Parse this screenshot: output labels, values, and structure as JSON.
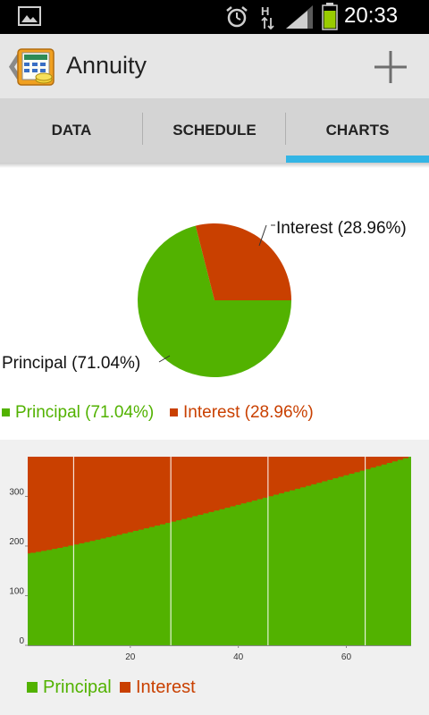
{
  "status_bar": {
    "time": "20:33",
    "network_label": "H"
  },
  "action_bar": {
    "title": "Annuity"
  },
  "tabs": [
    {
      "label": "DATA",
      "selected": false
    },
    {
      "label": "SCHEDULE",
      "selected": false
    },
    {
      "label": "CHARTS",
      "selected": true
    }
  ],
  "colors": {
    "principal": "#52b200",
    "interest": "#c94000",
    "accent": "#33b5e5"
  },
  "chart_data": [
    {
      "type": "pie",
      "slices": [
        {
          "name": "Principal",
          "value": 71.04,
          "label": "Principal (71.04%)",
          "color": "#52b200"
        },
        {
          "name": "Interest",
          "value": 28.96,
          "label": "Interest (28.96%)",
          "color": "#c94000"
        }
      ],
      "legend": [
        "Principal (71.04%)",
        "Interest (28.96%)"
      ],
      "legend_position": "bottom-left"
    },
    {
      "type": "area",
      "stacked": true,
      "x_range": [
        1,
        72
      ],
      "y_range": [
        0,
        380
      ],
      "x_ticks": [
        20,
        40,
        60
      ],
      "y_ticks": [
        0,
        100,
        200,
        300
      ],
      "x_tick_labels": [
        "20",
        "40",
        "60"
      ],
      "y_tick_labels": [
        "0",
        "100",
        "200",
        "300"
      ],
      "vertical_gridlines_x": [
        9.5,
        27.5,
        45.5,
        63.5
      ],
      "series": [
        {
          "name": "Principal",
          "color": "#52b200",
          "start": 185,
          "end": 380
        },
        {
          "name": "Interest",
          "color": "#c94000",
          "start": 195,
          "end": 0
        }
      ],
      "legend": [
        "Principal",
        "Interest"
      ],
      "legend_position": "bottom-left"
    }
  ]
}
